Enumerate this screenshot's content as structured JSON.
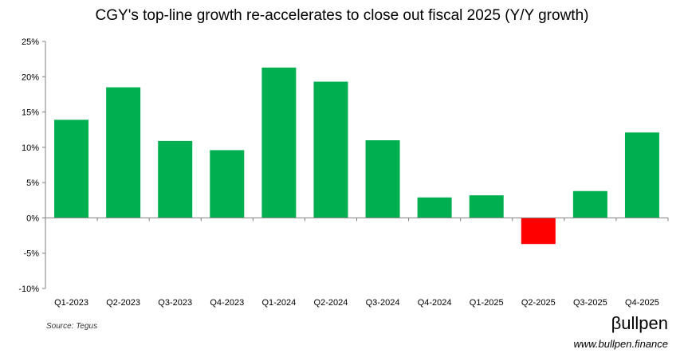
{
  "chart_data": {
    "type": "bar",
    "title": "CGY's top-line growth re-accelerates to close out fiscal 2025 (Y/Y growth)",
    "categories": [
      "Q1-2023",
      "Q2-2023",
      "Q3-2023",
      "Q4-2023",
      "Q1-2024",
      "Q2-2024",
      "Q3-2024",
      "Q4-2024",
      "Q1-2025",
      "Q2-2025",
      "Q3-2025",
      "Q4-2025"
    ],
    "values": [
      13.9,
      18.5,
      10.9,
      9.6,
      21.3,
      19.3,
      11.0,
      2.9,
      3.2,
      -3.7,
      3.8,
      12.1
    ],
    "ylim": [
      -10,
      25
    ],
    "yticks": [
      -10,
      -5,
      0,
      5,
      10,
      15,
      20,
      25
    ],
    "ytick_labels": [
      "-10%",
      "-5%",
      "0%",
      "5%",
      "10%",
      "15%",
      "20%",
      "25%"
    ],
    "xlabel": "",
    "ylabel": "",
    "positive_color": "#00b050",
    "negative_color": "#ff0000"
  },
  "footer": {
    "source": "Source: Tegus",
    "brand": "βullpen",
    "url": "www.bullpen.finance"
  }
}
